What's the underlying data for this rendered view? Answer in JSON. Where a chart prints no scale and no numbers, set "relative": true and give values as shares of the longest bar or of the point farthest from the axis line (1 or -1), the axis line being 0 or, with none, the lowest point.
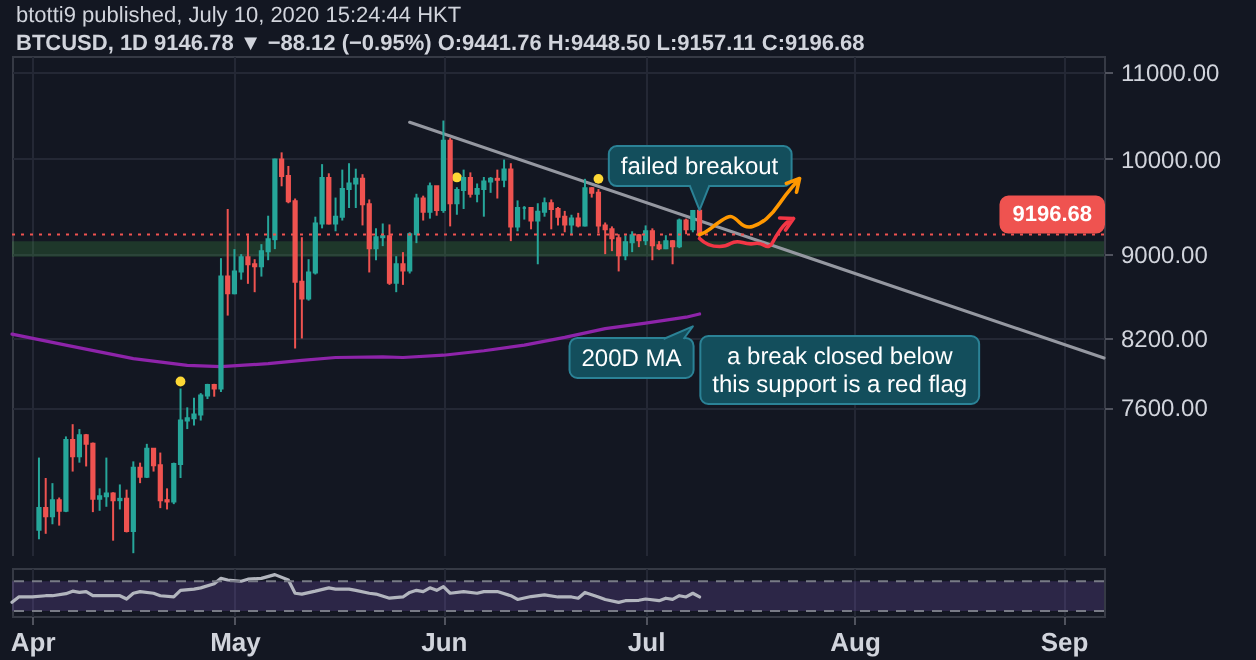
{
  "chart_data": [
    {
      "type": "candlestick",
      "title": "btotti9 published, July 10, 2020 15:24:44 HKT",
      "subtitle": "BTCUSD, 1D 9146.78 ▼ −88.12 (−0.95%) O:9441.76 H:9448.50 L:9157.11 C:9196.68",
      "x": [
        "2020-04-02",
        "2020-04-03",
        "2020-04-04",
        "2020-04-05",
        "2020-04-06",
        "2020-04-07",
        "2020-04-08",
        "2020-04-09",
        "2020-04-10",
        "2020-04-11",
        "2020-04-12",
        "2020-04-13",
        "2020-04-14",
        "2020-04-15",
        "2020-04-16",
        "2020-04-17",
        "2020-04-18",
        "2020-04-19",
        "2020-04-20",
        "2020-04-21",
        "2020-04-22",
        "2020-04-23",
        "2020-04-24",
        "2020-04-25",
        "2020-04-26",
        "2020-04-27",
        "2020-04-28",
        "2020-04-29",
        "2020-04-30",
        "2020-05-01",
        "2020-05-02",
        "2020-05-03",
        "2020-05-04",
        "2020-05-05",
        "2020-05-06",
        "2020-05-07",
        "2020-05-08",
        "2020-05-09",
        "2020-05-10",
        "2020-05-11",
        "2020-05-12",
        "2020-05-13",
        "2020-05-14",
        "2020-05-15",
        "2020-05-16",
        "2020-05-17",
        "2020-05-18",
        "2020-05-19",
        "2020-05-20",
        "2020-05-21",
        "2020-05-22",
        "2020-05-23",
        "2020-05-24",
        "2020-05-25",
        "2020-05-26",
        "2020-05-27",
        "2020-05-28",
        "2020-05-29",
        "2020-05-30",
        "2020-05-31",
        "2020-06-01",
        "2020-06-02",
        "2020-06-03",
        "2020-06-04",
        "2020-06-05",
        "2020-06-06",
        "2020-06-07",
        "2020-06-08",
        "2020-06-09",
        "2020-06-10",
        "2020-06-11",
        "2020-06-12",
        "2020-06-13",
        "2020-06-14",
        "2020-06-15",
        "2020-06-16",
        "2020-06-17",
        "2020-06-18",
        "2020-06-19",
        "2020-06-20",
        "2020-06-21",
        "2020-06-22",
        "2020-06-23",
        "2020-06-24",
        "2020-06-25",
        "2020-06-26",
        "2020-06-27",
        "2020-06-28",
        "2020-06-29",
        "2020-06-30",
        "2020-07-01",
        "2020-07-02",
        "2020-07-03",
        "2020-07-04",
        "2020-07-05",
        "2020-07-06",
        "2020-07-07",
        "2020-07-08",
        "2020-07-09"
      ],
      "ohlc": [
        [
          6640,
          7190,
          6570,
          6800
        ],
        [
          6800,
          7030,
          6610,
          6740
        ],
        [
          6740,
          6990,
          6680,
          6860
        ],
        [
          6860,
          6880,
          6670,
          6780
        ],
        [
          6780,
          7360,
          6770,
          7330
        ],
        [
          7330,
          7460,
          7080,
          7200
        ],
        [
          7200,
          7420,
          7150,
          7370
        ],
        [
          7370,
          7380,
          7120,
          7300
        ],
        [
          7300,
          7310,
          6770,
          6870
        ],
        [
          6870,
          6950,
          6780,
          6890
        ],
        [
          6890,
          7190,
          6810,
          6910
        ],
        [
          6910,
          6920,
          6560,
          6860
        ],
        [
          6860,
          6980,
          6790,
          6870
        ],
        [
          6870,
          6940,
          6620,
          6630
        ],
        [
          6630,
          7160,
          6470,
          7110
        ],
        [
          7110,
          7150,
          6990,
          7040
        ],
        [
          7040,
          7300,
          7030,
          7260
        ],
        [
          7260,
          7260,
          7080,
          7130
        ],
        [
          7130,
          7230,
          6800,
          6860
        ],
        [
          6860,
          6950,
          6790,
          6850
        ],
        [
          6850,
          7150,
          6830,
          7140
        ],
        [
          7140,
          7760,
          7030,
          7490
        ],
        [
          7490,
          7600,
          7420,
          7510
        ],
        [
          7510,
          7680,
          7450,
          7540
        ],
        [
          7540,
          7720,
          7490,
          7700
        ],
        [
          7700,
          7800,
          7670,
          7790
        ],
        [
          7790,
          7800,
          7690,
          7760
        ],
        [
          7760,
          8960,
          7730,
          8780
        ],
        [
          8780,
          9460,
          8410,
          8620
        ],
        [
          8620,
          9050,
          8610,
          8830
        ],
        [
          8830,
          9000,
          8750,
          8970
        ],
        [
          8970,
          9190,
          8710,
          8900
        ],
        [
          8900,
          8950,
          8630,
          8880
        ],
        [
          8880,
          9100,
          8780,
          9030
        ],
        [
          9030,
          9390,
          8940,
          9150
        ],
        [
          9150,
          10000,
          9050,
          9990
        ],
        [
          9990,
          10070,
          9700,
          9810
        ],
        [
          9810,
          9920,
          9520,
          9540
        ],
        [
          9540,
          9570,
          8110,
          8730
        ],
        [
          8730,
          9170,
          8200,
          8570
        ],
        [
          8570,
          8950,
          8550,
          8820
        ],
        [
          8820,
          9380,
          8800,
          9310
        ],
        [
          9310,
          9940,
          9260,
          9790
        ],
        [
          9790,
          9840,
          9300,
          9310
        ],
        [
          9310,
          9580,
          9230,
          9380
        ],
        [
          9380,
          9880,
          9340,
          9670
        ],
        [
          9670,
          9950,
          9470,
          9730
        ],
        [
          9730,
          9890,
          9470,
          9780
        ],
        [
          9780,
          9830,
          9290,
          9510
        ],
        [
          9510,
          9560,
          8820,
          9060
        ],
        [
          9060,
          9260,
          8940,
          9170
        ],
        [
          9170,
          9310,
          9080,
          9180
        ],
        [
          9180,
          9300,
          8700,
          8720
        ],
        [
          8720,
          8980,
          8630,
          8900
        ],
        [
          8900,
          9020,
          8700,
          8840
        ],
        [
          8840,
          9220,
          8810,
          9200
        ],
        [
          9200,
          9620,
          9110,
          9570
        ],
        [
          9570,
          9600,
          9340,
          9430
        ],
        [
          9430,
          9740,
          9360,
          9700
        ],
        [
          9700,
          9700,
          9390,
          9450
        ],
        [
          9450,
          10430,
          9420,
          10200
        ],
        [
          10200,
          10230,
          9280,
          9520
        ],
        [
          9520,
          9690,
          9400,
          9660
        ],
        [
          9660,
          9880,
          9460,
          9790
        ],
        [
          9790,
          9850,
          9580,
          9620
        ],
        [
          9620,
          9730,
          9530,
          9670
        ],
        [
          9670,
          9800,
          9380,
          9750
        ],
        [
          9750,
          9800,
          9630,
          9780
        ],
        [
          9780,
          9880,
          9570,
          9770
        ],
        [
          9770,
          9990,
          9690,
          9880
        ],
        [
          9880,
          9950,
          9130,
          9280
        ],
        [
          9280,
          9550,
          9230,
          9470
        ],
        [
          9470,
          9490,
          9350,
          9470
        ],
        [
          9470,
          9480,
          9250,
          9340
        ],
        [
          9340,
          9520,
          8900,
          9430
        ],
        [
          9430,
          9580,
          9380,
          9520
        ],
        [
          9520,
          9560,
          9250,
          9460
        ],
        [
          9460,
          9480,
          9290,
          9380
        ],
        [
          9380,
          9440,
          9220,
          9300
        ],
        [
          9300,
          9400,
          9190,
          9360
        ],
        [
          9360,
          9420,
          9270,
          9290
        ],
        [
          9290,
          9780,
          9280,
          9680
        ],
        [
          9680,
          9690,
          9580,
          9630
        ],
        [
          9630,
          9670,
          9210,
          9290
        ],
        [
          9290,
          9320,
          9000,
          9250
        ],
        [
          9250,
          9280,
          9030,
          9160
        ],
        [
          9160,
          9200,
          8830,
          8990
        ],
        [
          8990,
          9190,
          8940,
          9120
        ],
        [
          9120,
          9230,
          9020,
          9190
        ],
        [
          9190,
          9200,
          9070,
          9140
        ],
        [
          9140,
          9290,
          9090,
          9230
        ],
        [
          9230,
          9260,
          8940,
          9090
        ],
        [
          9090,
          9130,
          9040,
          9060
        ],
        [
          9060,
          9190,
          9050,
          9130
        ],
        [
          9130,
          9140,
          8900,
          9080
        ],
        [
          9080,
          9360,
          9060,
          9340
        ],
        [
          9340,
          9360,
          9200,
          9250
        ],
        [
          9250,
          9450,
          9220,
          9440
        ],
        [
          9441.76,
          9448.5,
          9157.11,
          9196.68
        ]
      ],
      "colors": [
        "#26a69a",
        "#ef5350",
        "#26a69a",
        "#ef5350",
        "#26a69a",
        "#ef5350",
        "#26a69a",
        "#ef5350",
        "#ef5350",
        "#26a69a",
        "#26a69a",
        "#ef5350",
        "#26a69a",
        "#ef5350",
        "#26a69a",
        "#ef5350",
        "#26a69a",
        "#ef5350",
        "#ef5350",
        "#ef5350",
        "#26a69a",
        "#26a69a",
        "#26a69a",
        "#26a69a",
        "#26a69a",
        "#26a69a",
        "#ef5350",
        "#26a69a",
        "#ef5350",
        "#26a69a",
        "#26a69a",
        "#ef5350",
        "#ef5350",
        "#26a69a",
        "#26a69a",
        "#26a69a",
        "#ef5350",
        "#ef5350",
        "#ef5350",
        "#ef5350",
        "#26a69a",
        "#26a69a",
        "#26a69a",
        "#ef5350",
        "#26a69a",
        "#26a69a",
        "#26a69a",
        "#26a69a",
        "#ef5350",
        "#ef5350",
        "#26a69a",
        "#26a69a",
        "#ef5350",
        "#26a69a",
        "#ef5350",
        "#26a69a",
        "#26a69a",
        "#ef5350",
        "#26a69a",
        "#ef5350",
        "#26a69a",
        "#ef5350",
        "#26a69a",
        "#26a69a",
        "#ef5350",
        "#26a69a",
        "#26a69a",
        "#26a69a",
        "#ef5350",
        "#26a69a",
        "#ef5350",
        "#26a69a",
        "#26a69a",
        "#ef5350",
        "#26a69a",
        "#26a69a",
        "#ef5350",
        "#ef5350",
        "#ef5350",
        "#26a69a",
        "#ef5350",
        "#26a69a",
        "#ef5350",
        "#ef5350",
        "#ef5350",
        "#ef5350",
        "#ef5350",
        "#26a69a",
        "#26a69a",
        "#ef5350",
        "#26a69a",
        "#ef5350",
        "#ef5350",
        "#26a69a",
        "#ef5350",
        "#26a69a",
        "#ef5350",
        "#26a69a",
        "#ef5350"
      ],
      "series": [
        {
          "type": "line",
          "name": "200D MA",
          "color": "#8e24aa",
          "x": [
            "2020-03-29",
            "2020-04-06",
            "2020-04-16",
            "2020-04-24",
            "2020-04-29",
            "2020-05-06",
            "2020-05-11",
            "2020-05-16",
            "2020-05-23",
            "2020-05-26",
            "2020-06-01",
            "2020-06-07",
            "2020-06-13",
            "2020-06-19",
            "2020-06-25",
            "2020-07-01",
            "2020-07-07",
            "2020-07-09"
          ],
          "values": [
            8240,
            8140,
            8020,
            7960,
            7950,
            7975,
            8005,
            8030,
            8035,
            8030,
            8050,
            8090,
            8140,
            8210,
            8290,
            8340,
            8395,
            8425
          ]
        },
        {
          "type": "line",
          "color": "#9598a1",
          "x": [
            "2020-05-27",
            "2020-09-07"
          ],
          "values": [
            10410,
            8025
          ]
        },
        {
          "type": "scatter",
          "color": "#fdd835",
          "marker": "circle",
          "x": [
            "2020-04-23",
            "2020-06-03",
            "2020-06-24"
          ],
          "values": [
            7820,
            9795,
            9780
          ]
        }
      ],
      "xlim": [
        "2020-03-29",
        "2020-09-07"
      ],
      "xticks": [
        {
          "value": "2020-04-01",
          "label": null
        },
        {
          "value": "2020-05-01",
          "label": null
        },
        {
          "value": "2020-06-01",
          "label": null
        },
        {
          "value": "2020-07-01",
          "label": null
        },
        {
          "value": "2020-08-01",
          "label": null
        },
        {
          "value": "2020-09-01",
          "label": null
        }
      ],
      "ylim": [
        6450,
        11200
      ],
      "yticks": [
        {
          "value": 7600,
          "label": "7600.00"
        },
        {
          "value": 8200,
          "label": "8200.00"
        },
        {
          "value": 9000,
          "label": "9000.00"
        },
        {
          "value": 10000,
          "label": "10000.00"
        },
        {
          "value": 11000,
          "label": "11000.00"
        }
      ],
      "log": true,
      "grid": true,
      "tick_labels": "y",
      "ref_lines": [
        {
          "axis": "y",
          "value": 9196.68,
          "label": "9196.68",
          "color": "#ef5350",
          "line_style": "dotted"
        }
      ],
      "bands": [
        {
          "axis": "y",
          "from": 8975,
          "to": 9130,
          "color": "#43a047"
        }
      ],
      "annotations": [
        {
          "text": "failed breakout",
          "x": "2020-07-09",
          "y": 9448.5
        },
        "a break closed below\nthis support is a red flag"
      ]
    },
    {
      "type": "line",
      "relative": true,
      "x": [
        "2020-03-29",
        "2020-03-30",
        "2020-04-01",
        "2020-04-03",
        "2020-04-04",
        "2020-04-06",
        "2020-04-07",
        "2020-04-08",
        "2020-04-09",
        "2020-04-10",
        "2020-04-12",
        "2020-04-14",
        "2020-04-15",
        "2020-04-16",
        "2020-04-17",
        "2020-04-19",
        "2020-04-20",
        "2020-04-22",
        "2020-04-23",
        "2020-04-25",
        "2020-04-26",
        "2020-04-28",
        "2020-04-29",
        "2020-04-30",
        "2020-05-02",
        "2020-05-03",
        "2020-05-05",
        "2020-05-07",
        "2020-05-09",
        "2020-05-10",
        "2020-05-11",
        "2020-05-13",
        "2020-05-15",
        "2020-05-16",
        "2020-05-18",
        "2020-05-19",
        "2020-05-21",
        "2020-05-22",
        "2020-05-24",
        "2020-05-26",
        "2020-05-27",
        "2020-05-28",
        "2020-05-29",
        "2020-05-30",
        "2020-05-31",
        "2020-06-01",
        "2020-06-02",
        "2020-06-04",
        "2020-06-06",
        "2020-06-07",
        "2020-06-09",
        "2020-06-11",
        "2020-06-12",
        "2020-06-14",
        "2020-06-16",
        "2020-06-18",
        "2020-06-20",
        "2020-06-21",
        "2020-06-22",
        "2020-06-24",
        "2020-06-25",
        "2020-06-27",
        "2020-06-28",
        "2020-06-30",
        "2020-07-01",
        "2020-07-03",
        "2020-07-04",
        "2020-07-05",
        "2020-07-06",
        "2020-07-07",
        "2020-07-08",
        "2020-07-09"
      ],
      "series": [
        {
          "color": "#b2b5be",
          "values": [
            0.33,
            0.46,
            0.46,
            0.49,
            0.49,
            0.54,
            0.6,
            0.57,
            0.59,
            0.49,
            0.49,
            0.49,
            0.41,
            0.55,
            0.59,
            0.55,
            0.49,
            0.46,
            0.62,
            0.65,
            0.68,
            0.78,
            0.91,
            0.87,
            0.84,
            0.89,
            0.91,
            1,
            0.87,
            0.55,
            0.53,
            0.6,
            0.68,
            0.65,
            0.65,
            0.62,
            0.55,
            0.53,
            0.43,
            0.46,
            0.57,
            0.62,
            0.59,
            0.68,
            0.62,
            0.71,
            0.55,
            0.59,
            0.55,
            0.59,
            0.59,
            0.49,
            0.4,
            0.47,
            0.51,
            0.46,
            0.46,
            0.43,
            0.57,
            0.46,
            0.4,
            0.33,
            0.37,
            0.38,
            0.41,
            0.37,
            0.43,
            0.4,
            0.49,
            0.46,
            0.55,
            0.46
          ]
        }
      ],
      "xlim": [
        "2020-03-29",
        "2020-09-07"
      ],
      "xticks": [
        {
          "value": "2020-04-01",
          "label": "Apr"
        },
        {
          "value": "2020-05-01",
          "label": "May"
        },
        {
          "value": "2020-06-01",
          "label": "Jun"
        },
        {
          "value": "2020-07-01",
          "label": "Jul"
        },
        {
          "value": "2020-08-01",
          "label": "Aug"
        },
        {
          "value": "2020-09-01",
          "label": "Sep"
        }
      ],
      "grid": "x",
      "tick_labels": "x",
      "ref_lines": [
        {
          "axis": "y",
          "value": 0.84,
          "color": "#787b86",
          "line_style": "dashed"
        },
        {
          "axis": "y",
          "value": 0.12,
          "color": "#787b86",
          "line_style": "dashed"
        }
      ],
      "bands": [
        {
          "axis": "y",
          "from": 0.12,
          "to": 0.84,
          "color": "#7e57c2"
        }
      ]
    }
  ]
}
